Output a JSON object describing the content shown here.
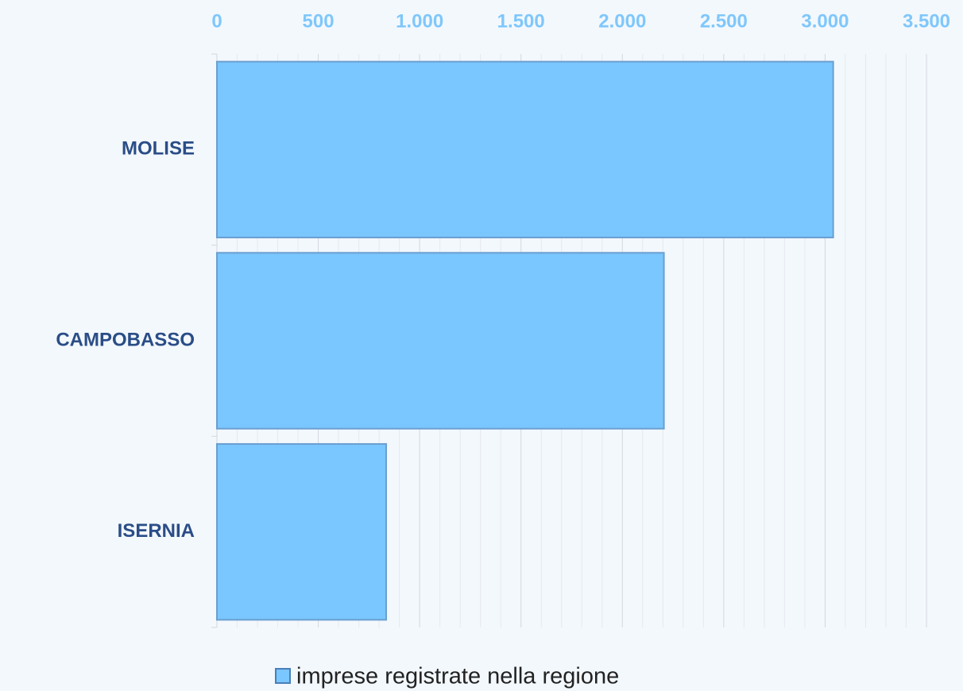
{
  "chart_data": {
    "type": "bar",
    "orientation": "horizontal",
    "categories": [
      "MOLISE",
      "CAMPOBASSO",
      "ISERNIA"
    ],
    "series": [
      {
        "name": "imprese registrate nella regione",
        "color": "#7ac6fe",
        "values": [
          3040,
          2205,
          835
        ]
      }
    ],
    "xlim": [
      0,
      3500
    ],
    "xticks": [
      0,
      500,
      {
        "value": 1000,
        "label": "1.000"
      },
      {
        "value": 1500,
        "label": "1.500"
      },
      {
        "value": 2000,
        "label": "2.000"
      },
      {
        "value": 2500,
        "label": "2.500"
      },
      {
        "value": 3000,
        "label": "3.000"
      },
      {
        "value": 3500,
        "label": "3.500"
      }
    ],
    "grid": true,
    "minor_grid": true,
    "legend": "bottom"
  }
}
